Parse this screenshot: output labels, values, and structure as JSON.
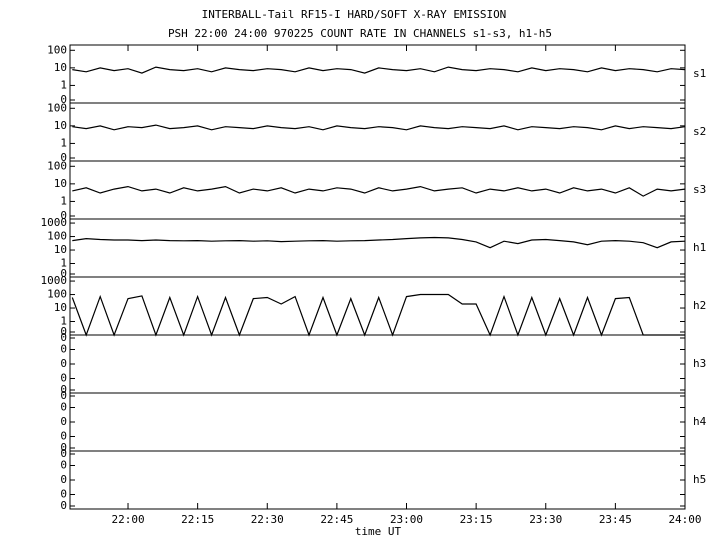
{
  "chart_data": {
    "type": "line",
    "title": "INTERBALL-Tail RF15-I HARD/SOFT X-RAY EMISSION",
    "subtitle": "PSH 22:00 24:00 970225  COUNT RATE IN CHANNELS s1-s3, h1-h5",
    "xlabel": "time UT",
    "color": "#000000",
    "xlim": [
      1307.5,
      1440
    ],
    "xticks": [
      {
        "value": 1320,
        "label": "22:00"
      },
      {
        "value": 1335,
        "label": "22:15"
      },
      {
        "value": 1350,
        "label": "22:30"
      },
      {
        "value": 1365,
        "label": "22:45"
      },
      {
        "value": 1380,
        "label": "23:00"
      },
      {
        "value": 1395,
        "label": "23:15"
      },
      {
        "value": 1410,
        "label": "23:30"
      },
      {
        "value": 1425,
        "label": "23:45"
      },
      {
        "value": 1440,
        "label": "24:00"
      }
    ],
    "x": [
      1308,
      1311,
      1314,
      1317,
      1320,
      1323,
      1326,
      1329,
      1332,
      1335,
      1338,
      1341,
      1344,
      1347,
      1350,
      1353,
      1356,
      1359,
      1362,
      1365,
      1368,
      1371,
      1374,
      1377,
      1380,
      1383,
      1386,
      1389,
      1392,
      1395,
      1398,
      1401,
      1404,
      1407,
      1410,
      1413,
      1416,
      1419,
      1422,
      1425,
      1428,
      1431,
      1434,
      1437,
      1440
    ],
    "series": [
      {
        "name": "s1",
        "log": true,
        "ylim": [
          0.1,
          200
        ],
        "yticks": [
          {
            "value": 0.1,
            "label": "0"
          },
          1,
          10,
          100
        ],
        "values": [
          8,
          6,
          10,
          7,
          9,
          5,
          11,
          8,
          7,
          9,
          6,
          10,
          8,
          7,
          9,
          8,
          6,
          10,
          7,
          9,
          8,
          5,
          10,
          8,
          7,
          9,
          6,
          11,
          8,
          7,
          9,
          8,
          6,
          10,
          7,
          9,
          8,
          6,
          10,
          7,
          9,
          8,
          6,
          9,
          8
        ]
      },
      {
        "name": "s2",
        "log": true,
        "ylim": [
          0.1,
          200
        ],
        "yticks": [
          {
            "value": 0.1,
            "label": "0"
          },
          1,
          10,
          100
        ],
        "values": [
          9,
          7,
          10,
          6,
          9,
          8,
          11,
          7,
          8,
          10,
          6,
          9,
          8,
          7,
          10,
          8,
          7,
          9,
          6,
          10,
          8,
          7,
          9,
          8,
          6,
          10,
          8,
          7,
          9,
          8,
          7,
          10,
          6,
          9,
          8,
          7,
          9,
          8,
          6,
          10,
          7,
          9,
          8,
          7,
          9
        ]
      },
      {
        "name": "s3",
        "log": true,
        "ylim": [
          0.1,
          200
        ],
        "yticks": [
          {
            "value": 0.1,
            "label": "0"
          },
          1,
          10,
          100
        ],
        "values": [
          4,
          6,
          3,
          5,
          7,
          4,
          5,
          3,
          6,
          4,
          5,
          7,
          3,
          5,
          4,
          6,
          3,
          5,
          4,
          6,
          5,
          3,
          6,
          4,
          5,
          7,
          4,
          5,
          6,
          3,
          5,
          4,
          6,
          4,
          5,
          3,
          6,
          4,
          5,
          3,
          6,
          2,
          5,
          4,
          5
        ]
      },
      {
        "name": "h1",
        "log": true,
        "ylim": [
          0.1,
          2000
        ],
        "yticks": [
          {
            "value": 0.1,
            "label": "0"
          },
          1,
          10,
          100,
          1000
        ],
        "values": [
          50,
          70,
          60,
          55,
          55,
          50,
          55,
          50,
          48,
          50,
          45,
          48,
          50,
          45,
          48,
          42,
          45,
          48,
          50,
          45,
          48,
          50,
          55,
          60,
          70,
          80,
          85,
          80,
          60,
          40,
          15,
          45,
          30,
          55,
          60,
          50,
          40,
          25,
          45,
          50,
          45,
          35,
          15,
          40,
          45
        ]
      },
      {
        "name": "h2",
        "log": true,
        "ylim": [
          0.1,
          2000
        ],
        "yticks": [
          {
            "value": 0.1,
            "label": "0"
          },
          1,
          10,
          100,
          1000
        ],
        "values": [
          60,
          0,
          70,
          0,
          50,
          80,
          0,
          60,
          0,
          70,
          0,
          60,
          0,
          50,
          60,
          20,
          70,
          0,
          60,
          0,
          50,
          0,
          60,
          0,
          70,
          100,
          100,
          100,
          20,
          20,
          0,
          70,
          0,
          60,
          0,
          50,
          0,
          60,
          0,
          50,
          60,
          0,
          0,
          0,
          0
        ]
      },
      {
        "name": "h3",
        "log": false,
        "ylim": [
          0,
          0.4
        ],
        "yticks": [
          {
            "value": 0,
            "label": "0"
          },
          {
            "value": 0.1,
            "label": "0"
          },
          {
            "value": 0.2,
            "label": "0"
          },
          {
            "value": 0.3,
            "label": "0"
          },
          {
            "value": 0.4,
            "label": "0"
          }
        ]
      },
      {
        "name": "h4",
        "log": false,
        "ylim": [
          0,
          0.4
        ],
        "yticks": [
          {
            "value": 0,
            "label": "0"
          },
          {
            "value": 0.1,
            "label": "0"
          },
          {
            "value": 0.2,
            "label": "0"
          },
          {
            "value": 0.3,
            "label": "0"
          },
          {
            "value": 0.4,
            "label": "0"
          }
        ]
      },
      {
        "name": "h5",
        "log": false,
        "ylim": [
          0,
          0.4
        ],
        "yticks": [
          {
            "value": 0,
            "label": "0"
          },
          {
            "value": 0.1,
            "label": "0"
          },
          {
            "value": 0.2,
            "label": "0"
          },
          {
            "value": 0.3,
            "label": "0"
          },
          {
            "value": 0.4,
            "label": "0"
          }
        ]
      }
    ]
  }
}
